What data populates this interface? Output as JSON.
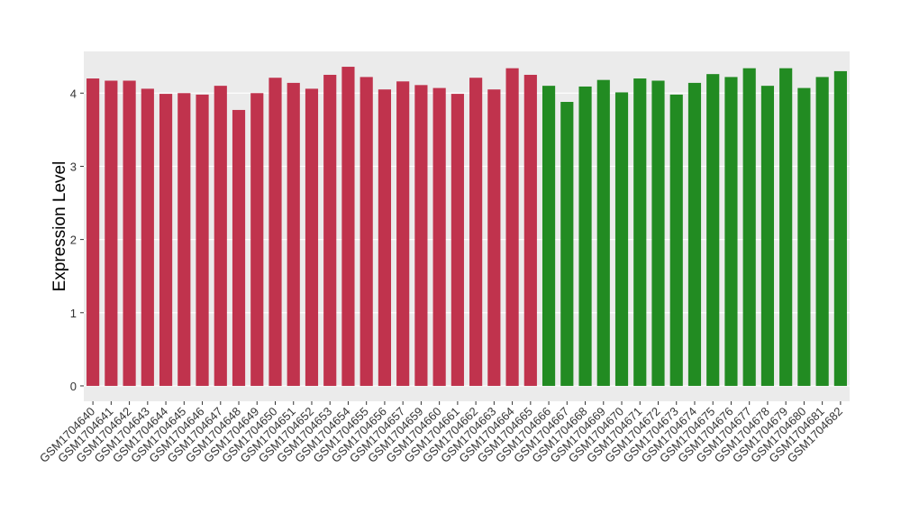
{
  "chart_data": {
    "type": "bar",
    "y_label": "Expression Level",
    "categories": [
      "GSM1704640",
      "GSM1704641",
      "GSM1704642",
      "GSM1704643",
      "GSM1704644",
      "GSM1704645",
      "GSM1704646",
      "GSM1704647",
      "GSM1704648",
      "GSM1704649",
      "GSM1704650",
      "GSM1704651",
      "GSM1704652",
      "GSM1704653",
      "GSM1704654",
      "GSM1704655",
      "GSM1704656",
      "GSM1704657",
      "GSM1704659",
      "GSM1704660",
      "GSM1704661",
      "GSM1704662",
      "GSM1704663",
      "GSM1704664",
      "GSM1704665",
      "GSM1704666",
      "GSM1704667",
      "GSM1704668",
      "GSM1704669",
      "GSM1704670",
      "GSM1704671",
      "GSM1704672",
      "GSM1704673",
      "GSM1704674",
      "GSM1704675",
      "GSM1704676",
      "GSM1704677",
      "GSM1704678",
      "GSM1704679",
      "GSM1704680",
      "GSM1704681",
      "GSM1704682"
    ],
    "values": [
      4.2,
      4.17,
      4.17,
      4.06,
      3.99,
      4.0,
      3.98,
      4.1,
      3.77,
      4.0,
      4.21,
      4.14,
      4.06,
      4.25,
      4.36,
      4.22,
      4.05,
      4.16,
      4.11,
      4.07,
      3.99,
      4.21,
      4.05,
      4.34,
      4.25,
      4.1,
      3.88,
      4.09,
      4.18,
      4.01,
      4.2,
      4.17,
      3.98,
      4.14,
      4.26,
      4.22,
      4.34,
      4.1,
      4.34,
      4.07,
      4.22,
      4.3
    ],
    "colors": [
      "#c0334d",
      "#c0334d",
      "#c0334d",
      "#c0334d",
      "#c0334d",
      "#c0334d",
      "#c0334d",
      "#c0334d",
      "#c0334d",
      "#c0334d",
      "#c0334d",
      "#c0334d",
      "#c0334d",
      "#c0334d",
      "#c0334d",
      "#c0334d",
      "#c0334d",
      "#c0334d",
      "#c0334d",
      "#c0334d",
      "#c0334d",
      "#c0334d",
      "#c0334d",
      "#c0334d",
      "#c0334d",
      "#228b22",
      "#228b22",
      "#228b22",
      "#228b22",
      "#228b22",
      "#228b22",
      "#228b22",
      "#228b22",
      "#228b22",
      "#228b22",
      "#228b22",
      "#228b22",
      "#228b22",
      "#228b22",
      "#228b22",
      "#228b22",
      "#228b22"
    ],
    "ylim": [
      -0.21,
      4.57
    ],
    "yticks": [
      0,
      1,
      2,
      3,
      4
    ],
    "grid": true,
    "background": "#ebebeb"
  }
}
